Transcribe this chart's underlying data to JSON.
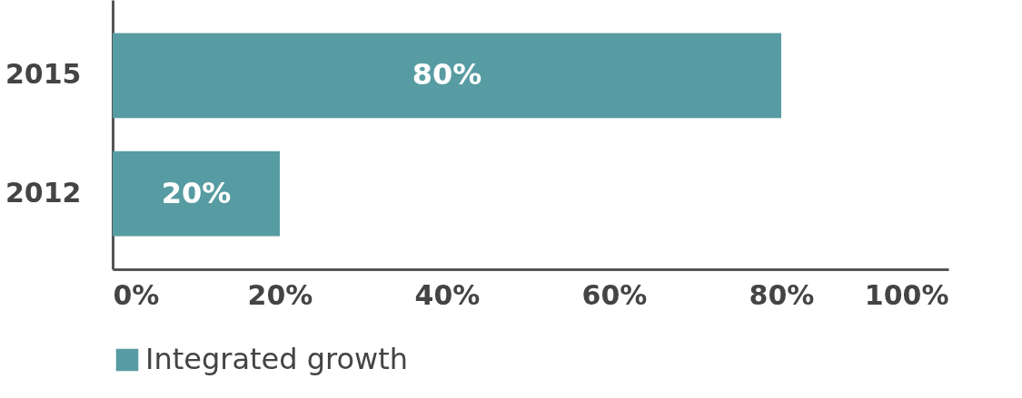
{
  "chart_data": {
    "type": "bar",
    "orientation": "horizontal",
    "categories": [
      "2015",
      "2012"
    ],
    "series": [
      {
        "name": "Integrated growth",
        "color": "#579ca2",
        "values": [
          80,
          20
        ]
      }
    ],
    "xlim": [
      0,
      100
    ],
    "xticks": [
      {
        "value": 0,
        "label": "0%"
      },
      {
        "value": 20,
        "label": "20%"
      },
      {
        "value": 40,
        "label": "40%"
      },
      {
        "value": 60,
        "label": "60%"
      },
      {
        "value": 80,
        "label": "80%"
      },
      {
        "value": 100,
        "label": "100%"
      }
    ],
    "value_labels": [
      "80%",
      "20%"
    ],
    "grid": false,
    "legend": "bottom"
  }
}
